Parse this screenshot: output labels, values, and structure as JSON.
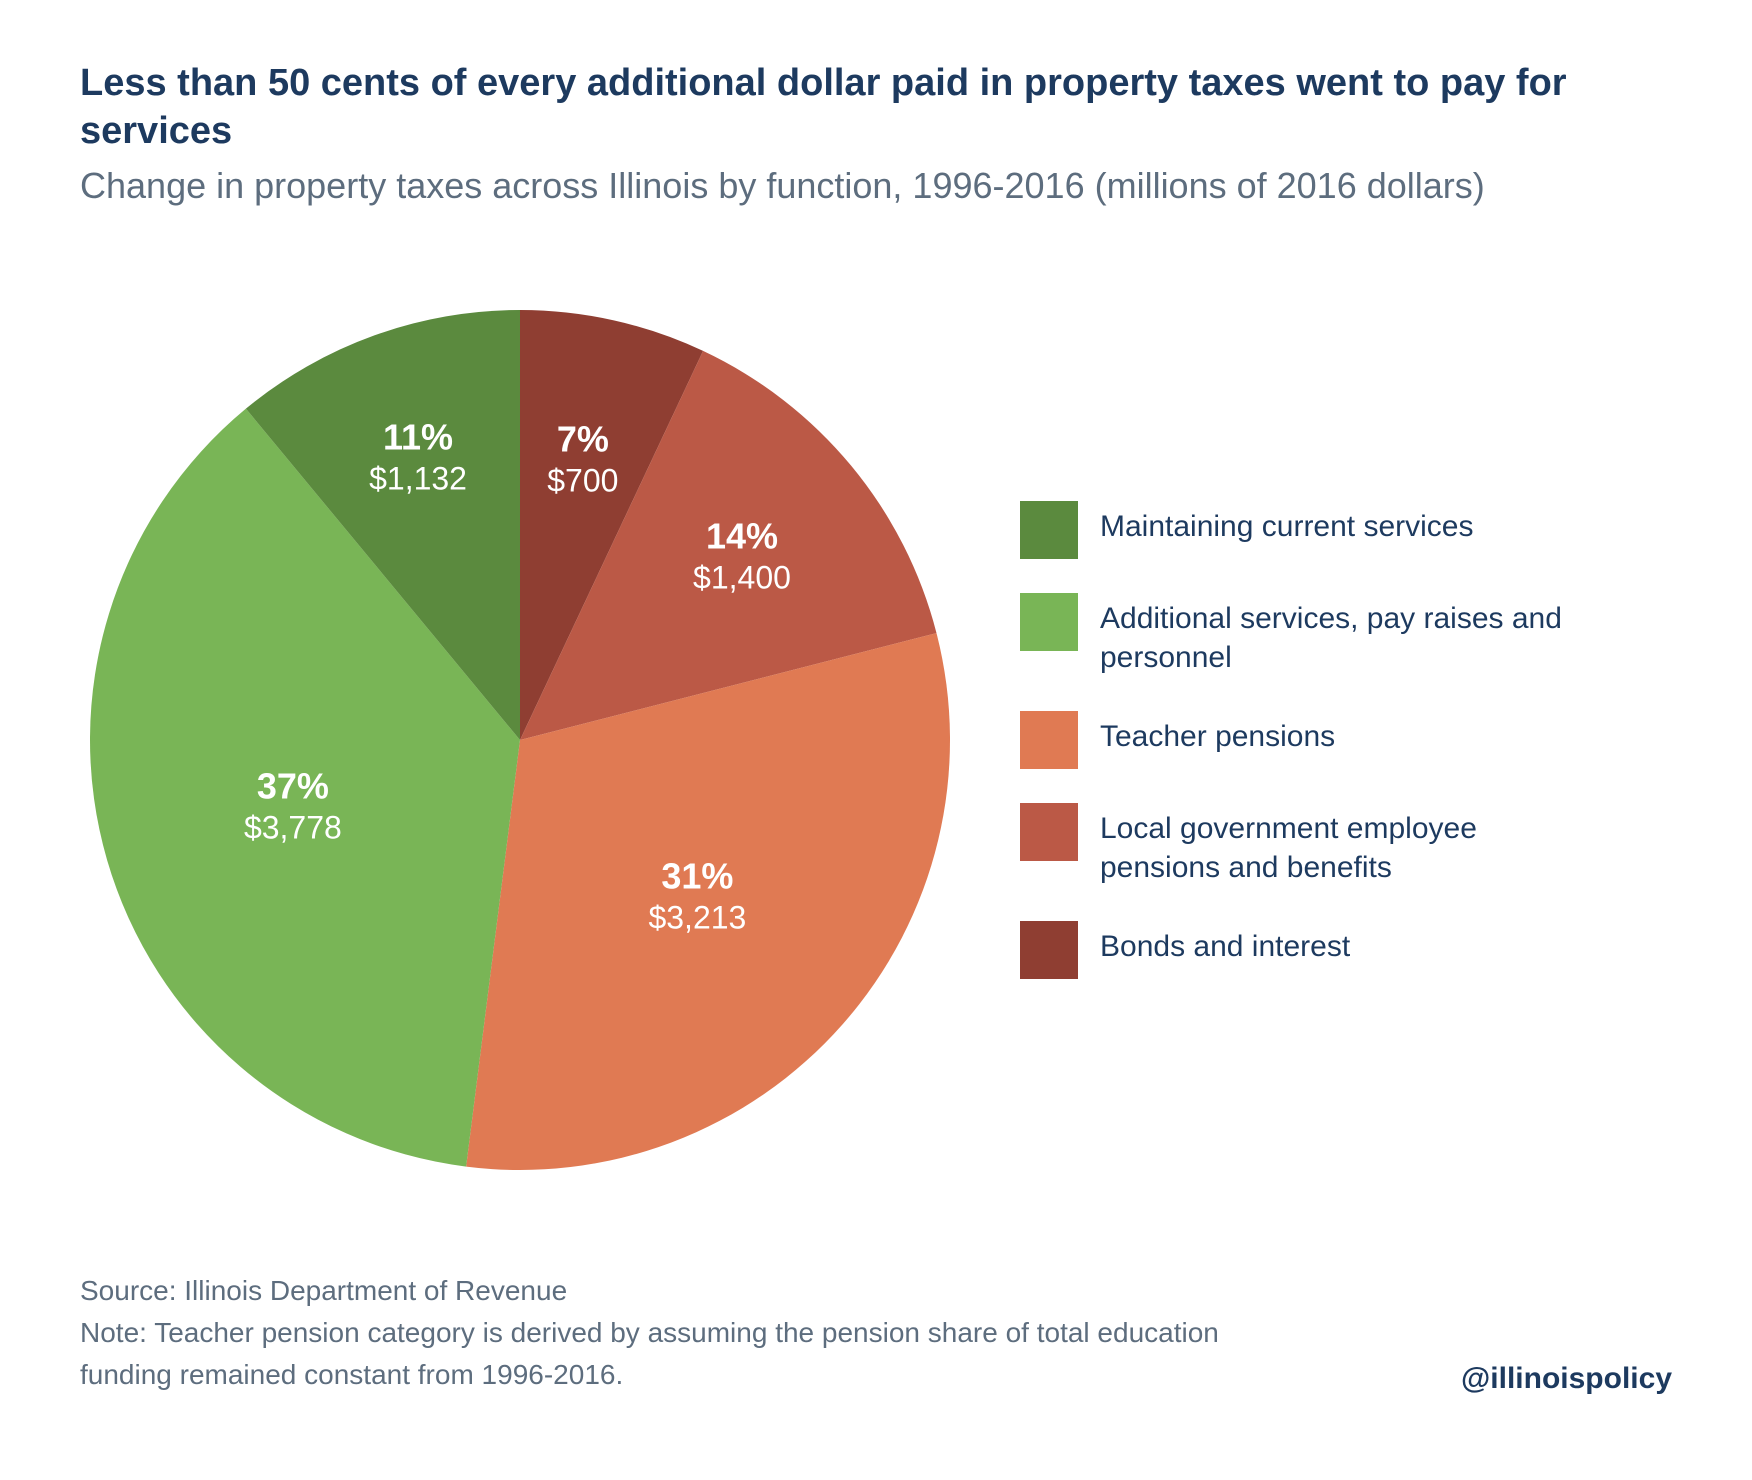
{
  "title": "Less than 50 cents of every additional dollar paid in property taxes went to pay for services",
  "subtitle": "Change in property taxes across Illinois by function, 1996-2016 (millions of 2016 dollars)",
  "source": "Source: Illinois Department of Revenue",
  "note": "Note: Teacher pension category is derived by assuming the pension share of total education funding remained constant from 1996-2016.",
  "handle": "@illinoispolicy",
  "title_color": "#1d3a5f",
  "subtitle_color": "#5d6d7e",
  "source_color": "#5d6d7e",
  "handle_color": "#1d3a5f",
  "title_fontsize": 38,
  "subtitle_fontsize": 36,
  "legend_fontsize": 30,
  "slice_pct_fontsize": 36,
  "slice_amt_fontsize": 32,
  "source_fontsize": 28,
  "handle_fontsize": 30,
  "background_color": "#ffffff",
  "pie": {
    "type": "pie",
    "radius": 430,
    "start_angle_deg": -90,
    "slices": [
      {
        "label": "Bonds and interest",
        "pct": 7,
        "amount": "$700",
        "color": "#8f3e32",
        "label_r": 0.67
      },
      {
        "label": "Local government employee pensions and benefits",
        "pct": 14,
        "amount": "$1,400",
        "color": "#bb5946",
        "label_r": 0.67
      },
      {
        "label": "Teacher pensions",
        "pct": 31,
        "amount": "$3,213",
        "color": "#e07a53",
        "label_r": 0.55
      },
      {
        "label": "Additional services, pay raises and personnel",
        "pct": 37,
        "amount": "$3,778",
        "color": "#79b556",
        "label_r": 0.55
      },
      {
        "label": "Maintaining current services",
        "pct": 11,
        "amount": "$1,132",
        "color": "#5b8a3e",
        "label_r": 0.7
      }
    ],
    "legend_order": [
      4,
      3,
      2,
      1,
      0
    ]
  }
}
